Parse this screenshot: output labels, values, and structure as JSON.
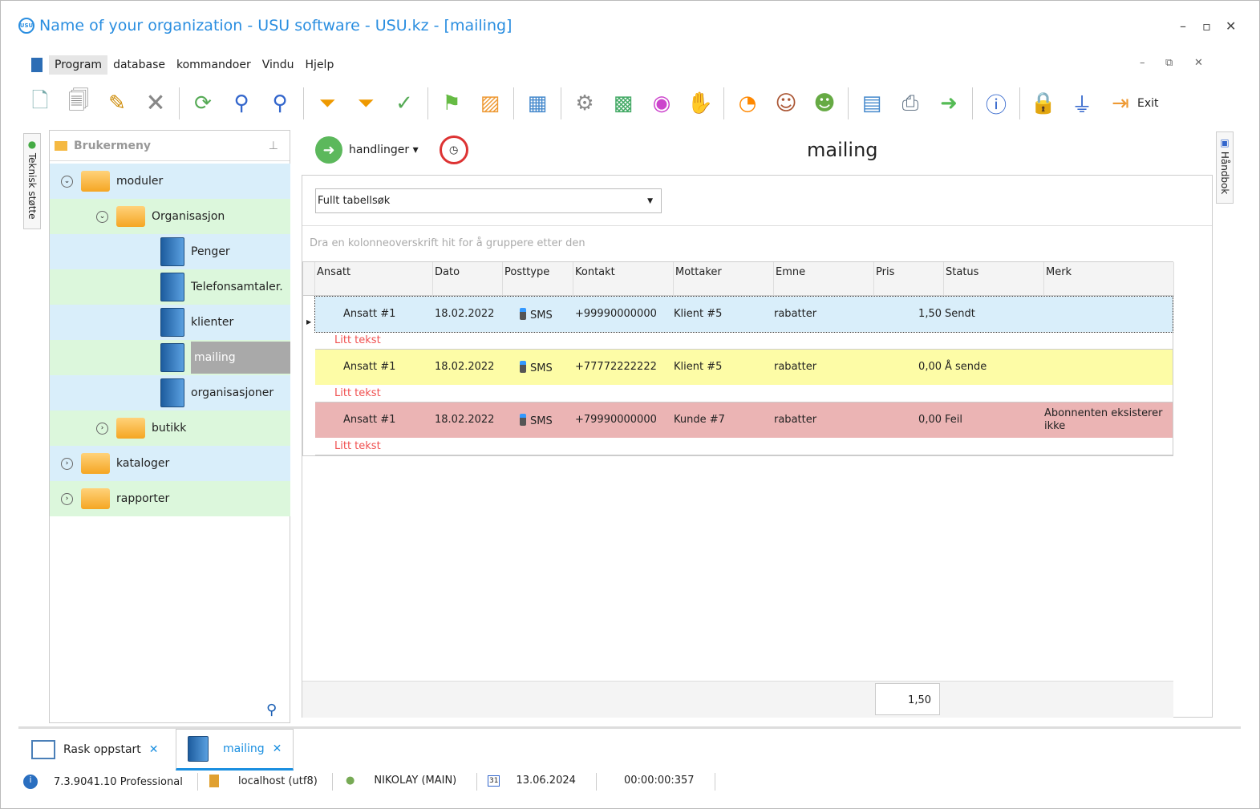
{
  "window": {
    "title": "Name of your organization - USU software - USU.kz - [mailing]",
    "logo": "USU",
    "min": "–",
    "max": "▫",
    "close": "✕"
  },
  "menu": [
    "Program",
    "database",
    "kommandoer",
    "Vindu",
    "Hjelp"
  ],
  "toolbar": {
    "icons": [
      "new-doc-icon",
      "copy-doc-icon",
      "edit-doc-icon",
      "delete-doc-icon",
      "refresh-icon",
      "search-icon",
      "search-table-icon",
      "filter-icon",
      "column-filter-icon",
      "filter-check-icon",
      "flag-icon",
      "image-icon",
      "grid-icon",
      "gear-icon",
      "map-icon",
      "color-wheel-icon",
      "hand-icon",
      "rss-icon",
      "user-key-icon",
      "users-icon",
      "table-icon",
      "printer-icon",
      "arrow-right-icon",
      "info-icon",
      "lock-icon",
      "plug-icon",
      "exit-icon"
    ],
    "exit_label": "Exit"
  },
  "side_left": "Teknisk støtte",
  "side_right": "Håndbok",
  "tree": {
    "header": "Brukermeny",
    "nodes": [
      {
        "label": "moduler"
      },
      {
        "label": "Organisasjon"
      },
      {
        "label": "Penger"
      },
      {
        "label": "Telefonsamtaler."
      },
      {
        "label": "klienter"
      },
      {
        "label": "mailing"
      },
      {
        "label": "organisasjoner"
      },
      {
        "label": "butikk"
      },
      {
        "label": "kataloger"
      },
      {
        "label": "rapporter"
      }
    ]
  },
  "panel": {
    "actions": "handlinger",
    "title": "mailing"
  },
  "search": {
    "mode": "Fullt tabellsøk",
    "group_hint": "Dra en kolonneoverskrift hit for å gruppere etter den"
  },
  "grid": {
    "columns": [
      "Ansatt",
      "Dato",
      "Posttype",
      "Kontakt",
      "Mottaker",
      "Emne",
      "Pris",
      "Status",
      "Merk"
    ],
    "rows": [
      {
        "ansatt": "Ansatt #1",
        "dato": "18.02.2022",
        "posttype": "SMS",
        "kontakt": "+99990000000",
        "mottaker": "Klient #5",
        "emne": "rabatter",
        "pris": "1,50",
        "status": "Sendt",
        "merk": "",
        "note": "Litt tekst",
        "color": "#d9eefa"
      },
      {
        "ansatt": "Ansatt #1",
        "dato": "18.02.2022",
        "posttype": "SMS",
        "kontakt": "+77772222222",
        "mottaker": "Klient #5",
        "emne": "rabatter",
        "pris": "0,00",
        "status": "Å sende",
        "merk": "",
        "note": "Litt tekst",
        "color": "#fdfca6"
      },
      {
        "ansatt": "Ansatt #1",
        "dato": "18.02.2022",
        "posttype": "SMS",
        "kontakt": "+79990000000",
        "mottaker": "Kunde #7",
        "emne": "rabatter",
        "pris": "0,00",
        "status": "Feil",
        "merk": "Abonnenten eksisterer ikke",
        "note": "Litt tekst",
        "color": "#ebb4b4"
      }
    ],
    "total": "1,50"
  },
  "tabs": [
    {
      "label": "Rask oppstart",
      "close": "✕"
    },
    {
      "label": "mailing",
      "close": "✕"
    }
  ],
  "status": {
    "version": "7.3.9041.10 Professional",
    "db": "localhost (utf8)",
    "user": "NIKOLAY (MAIN)",
    "date": "13.06.2024",
    "timer": "00:00:00:357",
    "calendar": "31"
  }
}
